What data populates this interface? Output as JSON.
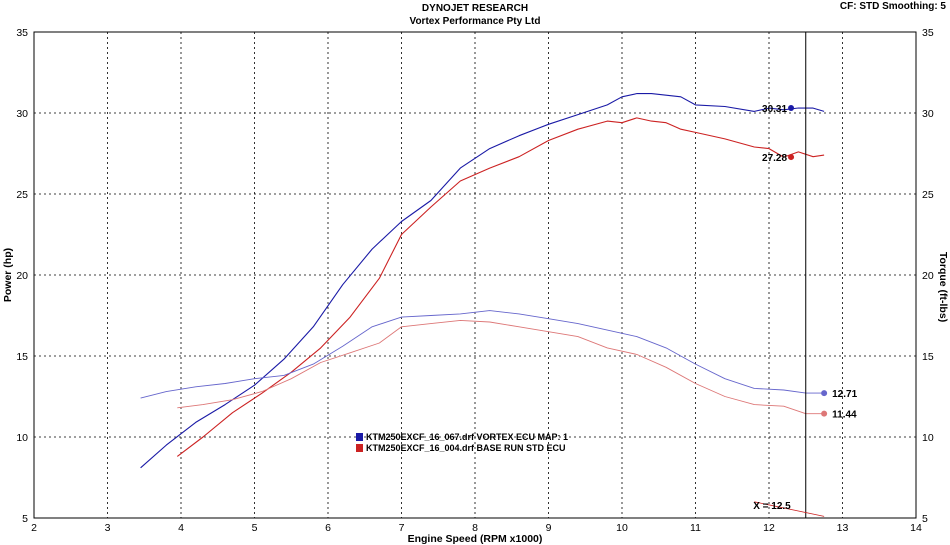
{
  "header": {
    "title": "DYNOJET RESEARCH",
    "subtitle": "Vortex Performance Pty Ltd",
    "settings": "CF: STD  Smoothing: 5"
  },
  "chart_data": {
    "type": "line",
    "xlabel": "Engine Speed (RPM x1000)",
    "ylabel_left": "Power (hp)",
    "ylabel_right": "Torque (ft-lbs)",
    "xlim": [
      2,
      14
    ],
    "ylim": [
      5,
      35
    ],
    "x_ticks": [
      "2",
      "3",
      "4",
      "5",
      "6",
      "7",
      "8",
      "9",
      "10",
      "11",
      "12",
      "13",
      "14"
    ],
    "y_ticks": [
      "5",
      "10",
      "15",
      "20",
      "25",
      "30",
      "35"
    ],
    "grid": true,
    "cursor": {
      "x": 12.5,
      "label": "X = 12.5"
    },
    "legend": [
      {
        "label": "KTM250EXCF_16_067.drf VORTEX ECU  MAP: 1",
        "color": "#1a1aa6"
      },
      {
        "label": "KTM250EXCF_16_004.drf BASE RUN STD ECU",
        "color": "#cc2222"
      }
    ],
    "series": [
      {
        "measure": "power",
        "run": "vortex",
        "color": "#1a1aa6",
        "x": [
          3.45,
          3.8,
          4.2,
          4.6,
          5.0,
          5.4,
          5.8,
          6.2,
          6.6,
          7.0,
          7.4,
          7.8,
          8.2,
          8.6,
          9.0,
          9.4,
          9.8,
          10.0,
          10.2,
          10.4,
          10.6,
          10.8,
          11.0,
          11.4,
          11.8,
          12.0,
          12.2,
          12.4,
          12.6,
          12.75
        ],
        "y": [
          8.1,
          9.5,
          10.9,
          12.0,
          13.2,
          14.8,
          16.8,
          19.4,
          21.6,
          23.3,
          24.6,
          26.6,
          27.8,
          28.6,
          29.3,
          29.9,
          30.5,
          31.0,
          31.2,
          31.2,
          31.1,
          31.0,
          30.5,
          30.4,
          30.1,
          30.3,
          30.2,
          30.31,
          30.3,
          30.1
        ]
      },
      {
        "measure": "power",
        "run": "base",
        "color": "#cc2222",
        "x": [
          3.95,
          4.3,
          4.7,
          5.1,
          5.5,
          5.9,
          6.3,
          6.7,
          7.0,
          7.4,
          7.8,
          8.2,
          8.6,
          9.0,
          9.4,
          9.8,
          10.0,
          10.2,
          10.4,
          10.6,
          10.8,
          11.0,
          11.4,
          11.8,
          12.0,
          12.2,
          12.4,
          12.6,
          12.75
        ],
        "y": [
          8.8,
          10.0,
          11.5,
          12.7,
          14.0,
          15.5,
          17.4,
          19.8,
          22.5,
          24.2,
          25.8,
          26.6,
          27.3,
          28.3,
          29.0,
          29.5,
          29.4,
          29.7,
          29.5,
          29.4,
          29.0,
          28.8,
          28.4,
          27.9,
          27.8,
          27.28,
          27.6,
          27.3,
          27.4
        ]
      },
      {
        "measure": "torque",
        "run": "vortex",
        "color": "#6666cc",
        "x": [
          3.45,
          3.8,
          4.2,
          4.6,
          5.0,
          5.4,
          5.8,
          6.2,
          6.6,
          7.0,
          7.4,
          7.8,
          8.2,
          8.6,
          9.0,
          9.4,
          9.8,
          10.2,
          10.6,
          11.0,
          11.4,
          11.8,
          12.2,
          12.5,
          12.75
        ],
        "y": [
          12.4,
          12.8,
          13.1,
          13.3,
          13.6,
          13.8,
          14.5,
          15.6,
          16.8,
          17.4,
          17.5,
          17.6,
          17.8,
          17.6,
          17.3,
          17.0,
          16.6,
          16.2,
          15.5,
          14.5,
          13.6,
          13.0,
          12.9,
          12.71,
          12.71
        ]
      },
      {
        "measure": "torque",
        "run": "base",
        "color": "#dd7777",
        "x": [
          3.95,
          4.3,
          4.7,
          5.1,
          5.5,
          5.9,
          6.3,
          6.7,
          7.0,
          7.4,
          7.8,
          8.2,
          8.6,
          9.0,
          9.4,
          9.8,
          10.2,
          10.6,
          11.0,
          11.4,
          11.8,
          12.2,
          12.5,
          12.75
        ],
        "y": [
          11.8,
          12.0,
          12.3,
          12.8,
          13.6,
          14.6,
          15.2,
          15.8,
          16.8,
          17.0,
          17.2,
          17.1,
          16.8,
          16.5,
          16.2,
          15.5,
          15.1,
          14.3,
          13.3,
          12.5,
          12.0,
          11.9,
          11.44,
          11.44
        ]
      }
    ],
    "annotations": [
      {
        "x": 12.3,
        "y": 30.31,
        "label": "30.31",
        "color": "#1a1aa6"
      },
      {
        "x": 12.3,
        "y": 27.28,
        "label": "27.28",
        "color": "#cc2222"
      },
      {
        "x": 12.75,
        "y": 12.71,
        "label": "12.71",
        "color": "#6666cc"
      },
      {
        "x": 12.75,
        "y": 11.44,
        "label": "11.44",
        "color": "#dd7777"
      }
    ]
  }
}
